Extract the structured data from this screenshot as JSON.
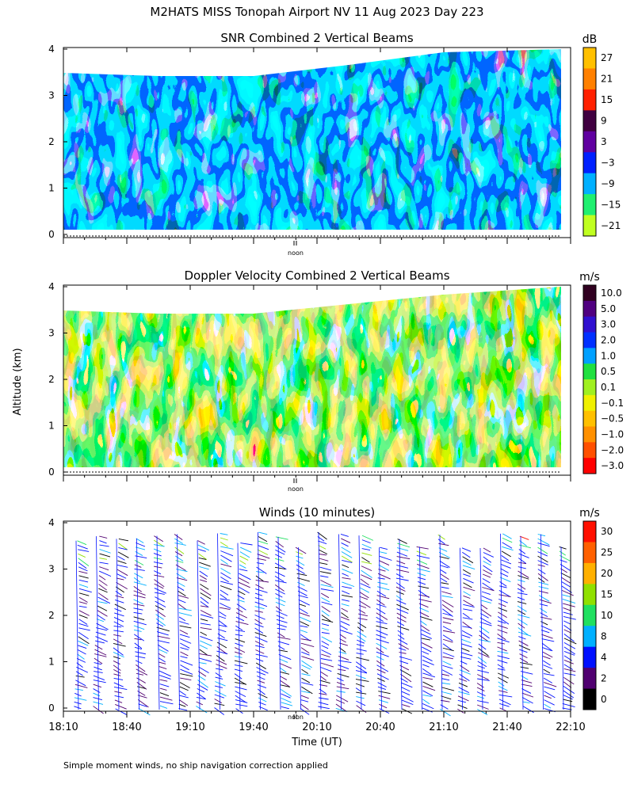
{
  "title": "M2HATS MISS Tonopah Airport NV  11 Aug 2023 Day 223",
  "ylabel": "Altitude (km)",
  "xlabel": "Time (UT)",
  "noon_label": "noon",
  "footnote": "Simple moment winds, no ship navigation correction applied",
  "chart_data": [
    {
      "type": "heatmap",
      "title": "SNR Combined 2 Vertical Beams",
      "ylim": [
        0,
        4
      ],
      "yticks": [
        "0",
        "1",
        "2",
        "3",
        "4"
      ],
      "colorbar": {
        "unit": "dB",
        "labels": [
          "27",
          "21",
          "15",
          "9",
          "3",
          "−3",
          "−9",
          "−15",
          "−21"
        ],
        "colors": [
          "#ffc000",
          "#ff8000",
          "#ff2000",
          "#400040",
          "#6000a0",
          "#0020ff",
          "#00b0ff",
          "#20f070",
          "#c0ff20"
        ]
      }
    },
    {
      "type": "heatmap",
      "title": "Doppler Velocity Combined 2 Vertical Beams",
      "ylim": [
        0,
        4
      ],
      "yticks": [
        "0",
        "1",
        "2",
        "3",
        "4"
      ],
      "colorbar": {
        "unit": "m/s",
        "labels": [
          "10.0",
          "5.0",
          "3.0",
          "2.0",
          "1.0",
          "0.5",
          "0.1",
          "−0.1",
          "−0.5",
          "−1.0",
          "−2.0",
          "−3.0"
        ],
        "colors": [
          "#300020",
          "#500080",
          "#3010d0",
          "#0030ff",
          "#00a0ff",
          "#20e040",
          "#a0f020",
          "#f0f000",
          "#ffc000",
          "#ff9000",
          "#ff5000",
          "#ff0000"
        ]
      }
    },
    {
      "type": "barbs",
      "title": "Winds (10 minutes)",
      "ylim": [
        0,
        4
      ],
      "yticks": [
        "0",
        "1",
        "2",
        "3",
        "4"
      ],
      "x_time_labels": [
        "18:10",
        "18:40",
        "19:10",
        "19:40",
        "20:10",
        "20:40",
        "21:10",
        "21:40",
        "22:10"
      ],
      "colorbar": {
        "unit": "m/s",
        "labels": [
          "30",
          "25",
          "20",
          "15",
          "10",
          "8",
          "4",
          "2",
          "0"
        ],
        "colors": [
          "#ff1000",
          "#ff6000",
          "#ffb000",
          "#90e000",
          "#20e060",
          "#00b0ff",
          "#0010ff",
          "#500070",
          "#000000"
        ]
      }
    }
  ]
}
